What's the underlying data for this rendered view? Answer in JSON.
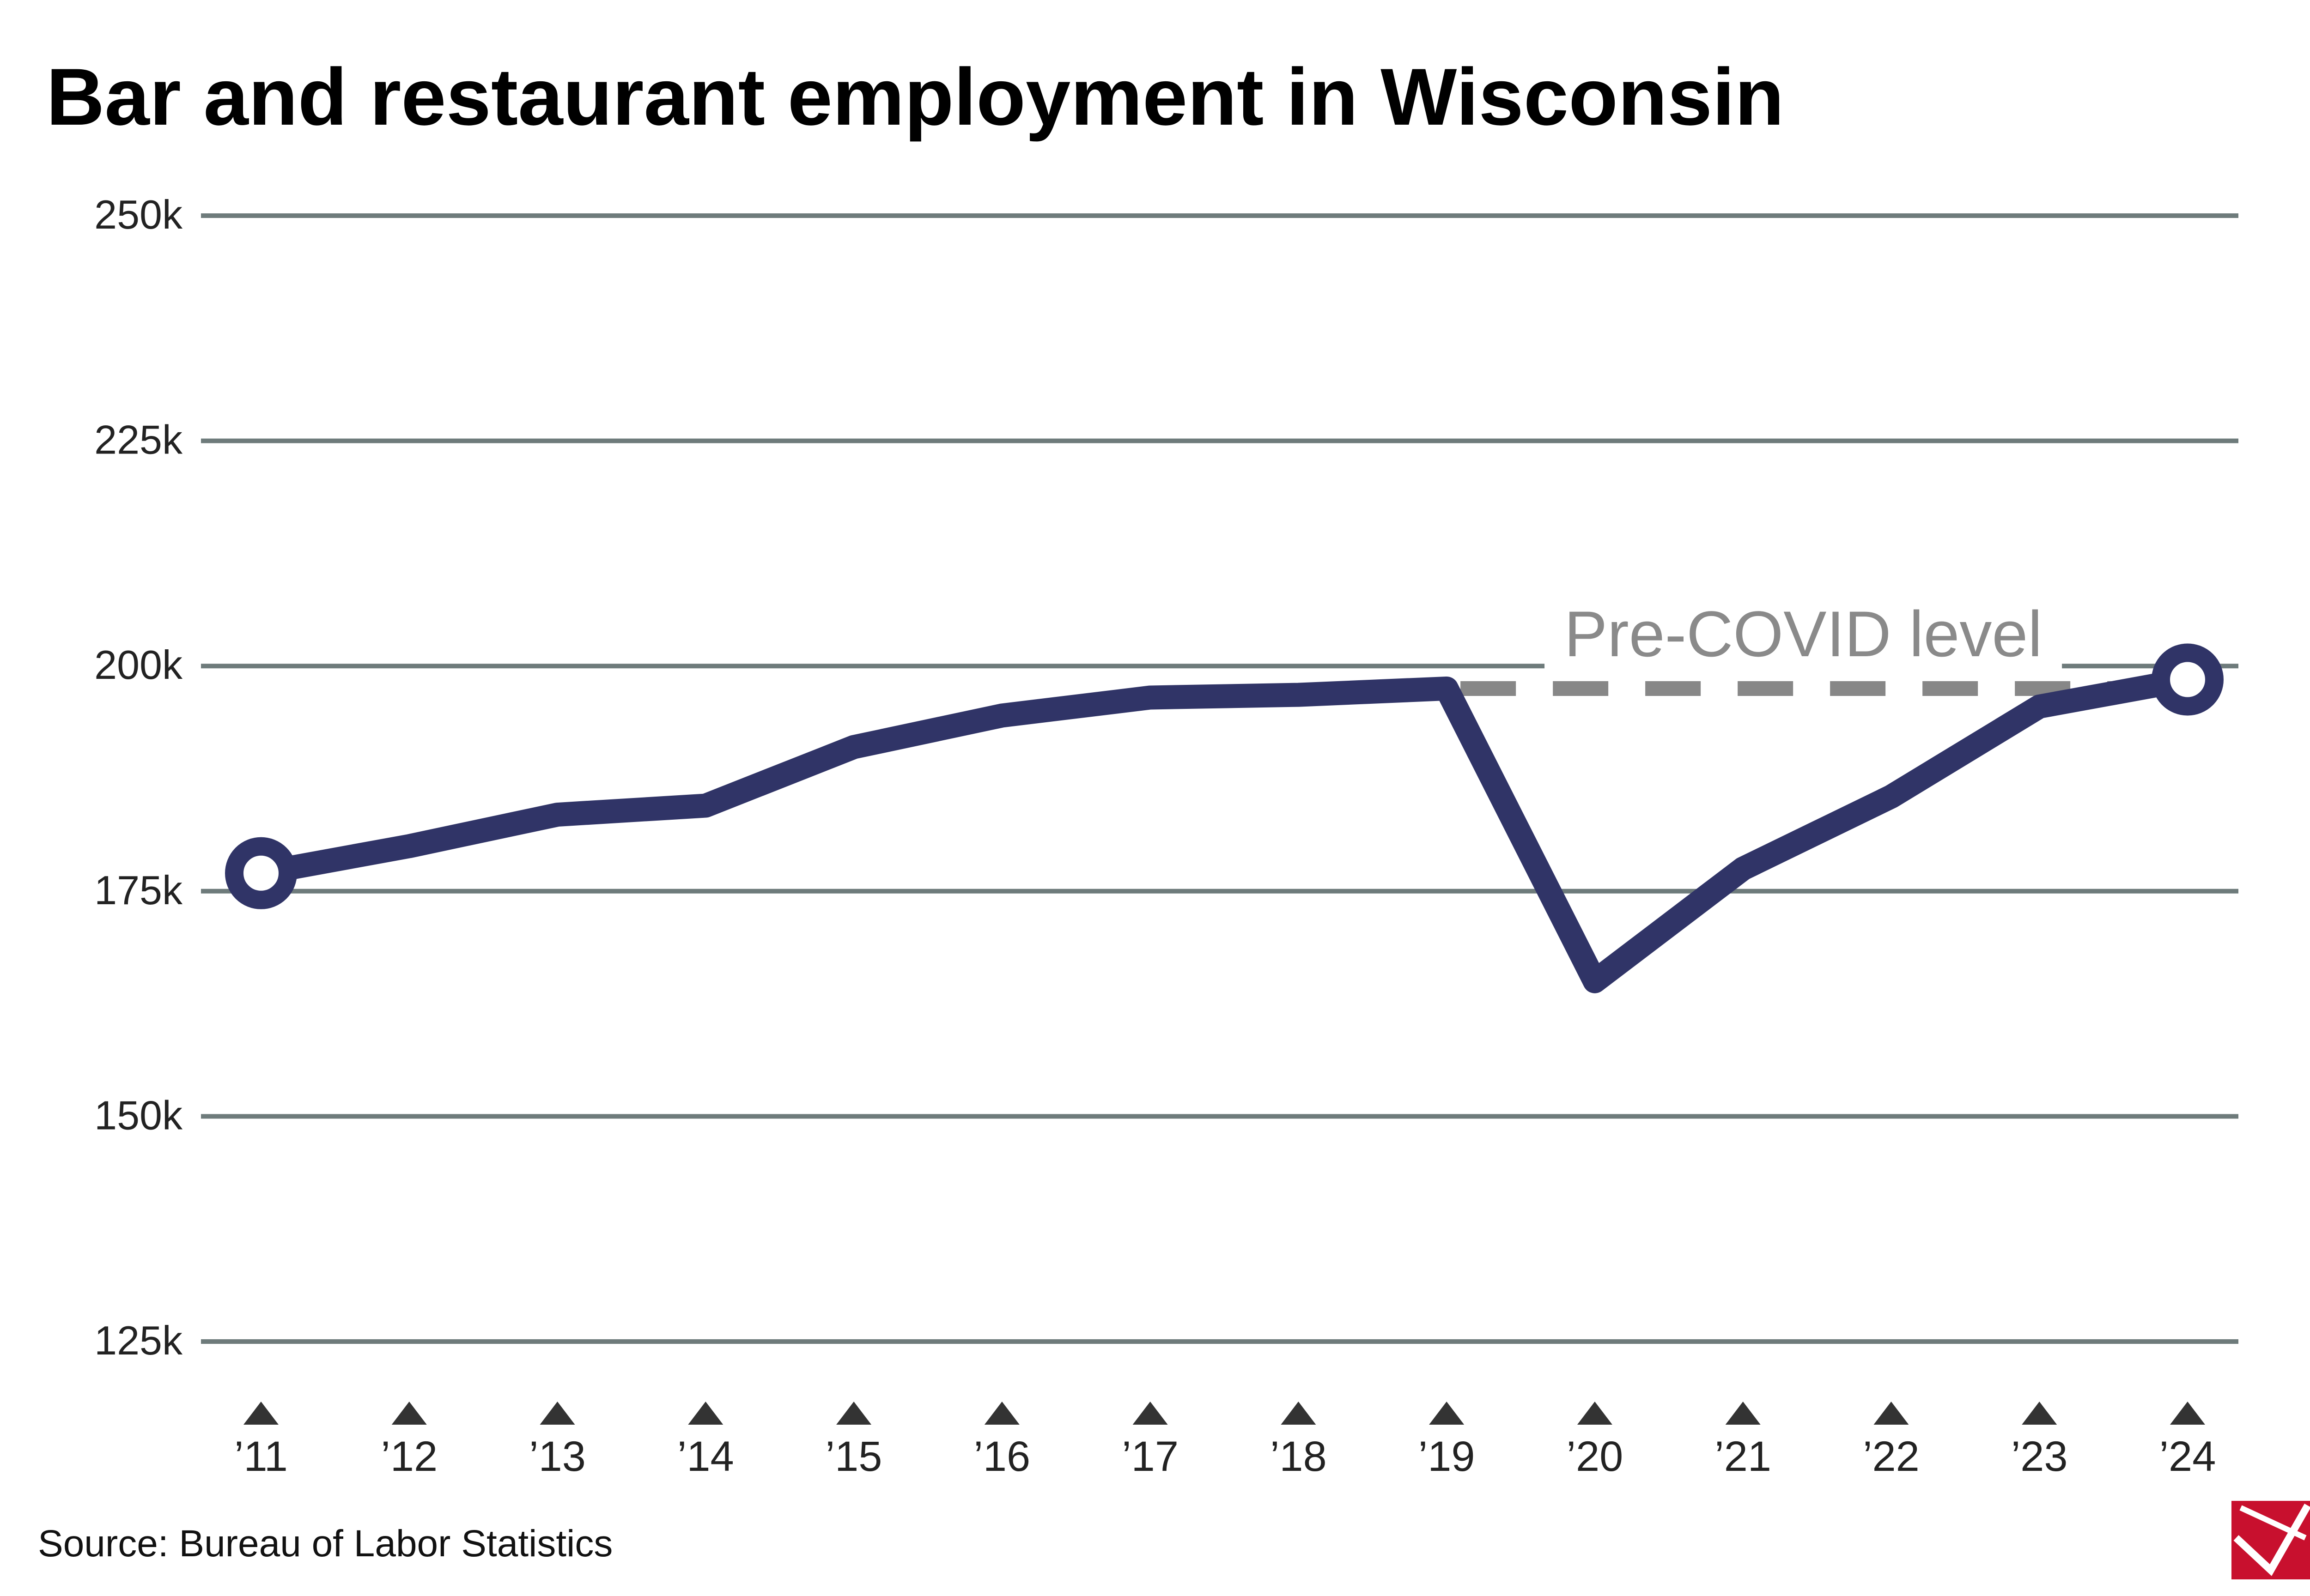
{
  "chart_data": {
    "type": "line",
    "title": "Bar and restaurant employment in Wisconsin",
    "source": "Source: Bureau of Labor Statistics",
    "categories": [
      "’11",
      "’12",
      "’13",
      "’14",
      "’15",
      "’16",
      "’17",
      "’18",
      "’19",
      "’20",
      "’21",
      "’22",
      "’23",
      "’24"
    ],
    "series": [
      {
        "values": [
          177000,
          180000,
          183500,
          184500,
          191000,
          194500,
          196500,
          196800,
          197500,
          165000,
          177500,
          185500,
          195500,
          198500
        ]
      }
    ],
    "ylim": [
      125000,
      250000
    ],
    "yticks": [
      {
        "value": 125000,
        "label": "125k"
      },
      {
        "value": 150000,
        "label": "150k"
      },
      {
        "value": 175000,
        "label": "175k"
      },
      {
        "value": 200000,
        "label": "200k"
      },
      {
        "value": 225000,
        "label": "225k"
      },
      {
        "value": 250000,
        "label": "250k"
      }
    ],
    "grid": true,
    "reference_line": {
      "label": "Pre-COVID level",
      "value": 197500,
      "from_category": "’19",
      "to_category": "’24",
      "style": "dashed"
    },
    "colors": {
      "line": "#303467",
      "grid": "#6e7b7b",
      "reference": "#878787",
      "marker_fill": "#ffffff",
      "logo": "#c8102e"
    },
    "icons": [
      "x-axis-tick-marker-icon",
      "logo-icon"
    ]
  }
}
